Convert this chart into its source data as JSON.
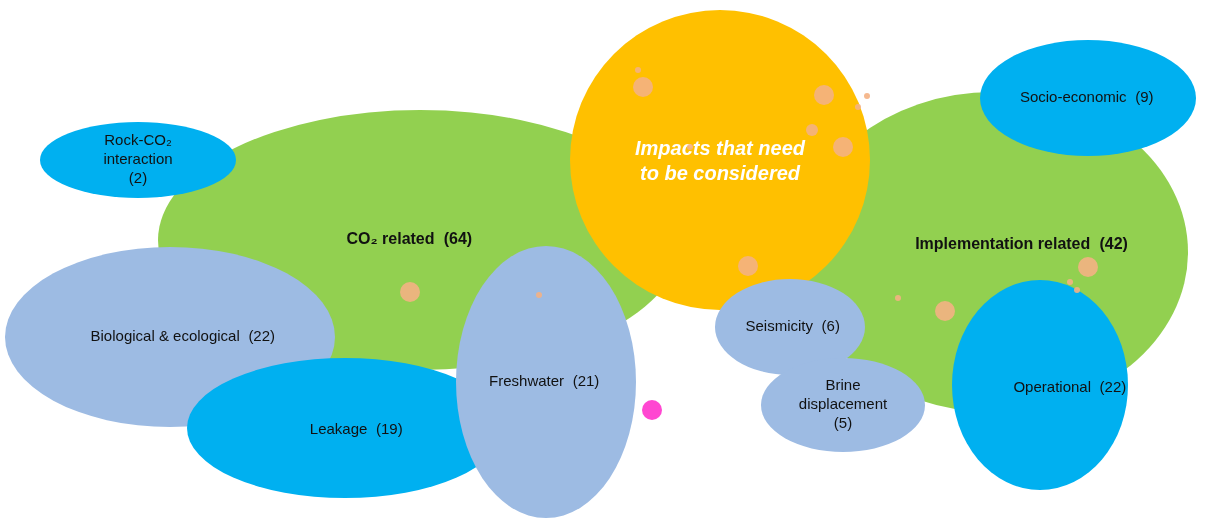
{
  "chart_data": {
    "type": "other",
    "title": "Impacts that need to be considered",
    "categories": [
      "CO₂ related",
      "Implementation related",
      "Rock-CO₂ interaction",
      "Biological & ecological",
      "Leakage",
      "Freshwater",
      "Socio-economic",
      "Seismicity",
      "Brine displacement",
      "Operational"
    ],
    "values": [
      64,
      42,
      2,
      22,
      19,
      21,
      9,
      6,
      5,
      22
    ],
    "value_labels": [
      "(64)",
      "(42)",
      "(2)",
      "(22)",
      "(19)",
      "(21)",
      "(9)",
      "(6)",
      "(5)",
      "(22)"
    ],
    "colors": [
      "#92d050",
      "#92d050",
      "#00b0f0",
      "#9dbbe3",
      "#00b0f0",
      "#9dbbe3",
      "#00b0f0",
      "#9dbbe3",
      "#9dbbe3",
      "#00b0f0"
    ]
  }
}
